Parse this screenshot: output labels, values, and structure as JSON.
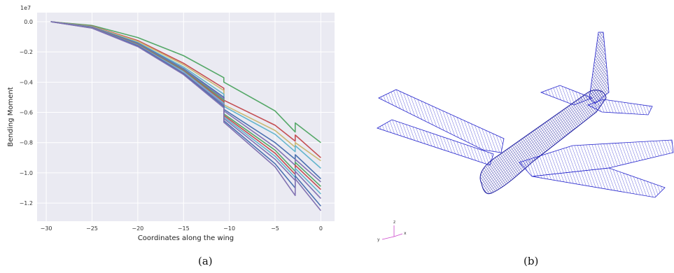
{
  "chart_data": {
    "type": "line",
    "title": "",
    "xlabel": "Coordinates along the wing",
    "ylabel": "Bending Moment",
    "scale_label": "1e7",
    "xlim": [
      -31,
      1.5
    ],
    "ylim": [
      -1.32,
      0.06
    ],
    "xticks": [
      -30,
      -25,
      -20,
      -15,
      -10,
      -5,
      0
    ],
    "yticks": [
      0.0,
      -0.2,
      -0.4,
      -0.6,
      -0.8,
      -1.0,
      -1.2
    ],
    "xtick_labels": [
      "−30",
      "−25",
      "−20",
      "−15",
      "−10",
      "−5",
      "0"
    ],
    "ytick_labels": [
      "0.0",
      "−0.2",
      "−0.4",
      "−0.6",
      "−0.8",
      "−1.0",
      "−1.2"
    ],
    "grid": true,
    "background": "#eaeaf2",
    "x": [
      -29.5,
      -25,
      -20,
      -15,
      -10.6,
      -10.6,
      -5,
      -2.8,
      -2.8,
      0
    ],
    "series": [
      {
        "color": "#55a868",
        "values": [
          0,
          -0.025,
          -0.105,
          -0.225,
          -0.37,
          -0.4,
          -0.59,
          -0.73,
          -0.67,
          -0.8
        ]
      },
      {
        "color": "#c44e52",
        "values": [
          0,
          -0.03,
          -0.125,
          -0.275,
          -0.44,
          -0.52,
          -0.685,
          -0.79,
          -0.75,
          -0.9
        ]
      },
      {
        "color": "#ccb974",
        "values": [
          0,
          -0.032,
          -0.13,
          -0.285,
          -0.455,
          -0.55,
          -0.72,
          -0.83,
          -0.8,
          -0.92
        ]
      },
      {
        "color": "#64b5cd",
        "values": [
          0,
          -0.034,
          -0.138,
          -0.3,
          -0.48,
          -0.56,
          -0.745,
          -0.86,
          -0.82,
          -0.97
        ]
      },
      {
        "color": "#4c72b0",
        "values": [
          0,
          -0.036,
          -0.142,
          -0.31,
          -0.5,
          -0.58,
          -0.8,
          -0.91,
          -0.88,
          -1.04
        ]
      },
      {
        "color": "#8172b2",
        "values": [
          0,
          -0.037,
          -0.146,
          -0.315,
          -0.51,
          -0.59,
          -0.83,
          -0.95,
          -0.91,
          -1.06
        ]
      },
      {
        "color": "#55a868",
        "values": [
          0,
          -0.038,
          -0.15,
          -0.32,
          -0.52,
          -0.61,
          -0.85,
          -0.99,
          -0.93,
          -1.09
        ]
      },
      {
        "color": "#c44e52",
        "values": [
          0,
          -0.039,
          -0.152,
          -0.325,
          -0.53,
          -0.62,
          -0.87,
          -1.01,
          -0.95,
          -1.11
        ]
      },
      {
        "color": "#64b5cd",
        "values": [
          0,
          -0.04,
          -0.155,
          -0.33,
          -0.54,
          -0.63,
          -0.89,
          -1.03,
          -0.97,
          -1.14
        ]
      },
      {
        "color": "#8172b2",
        "values": [
          0,
          -0.041,
          -0.158,
          -0.34,
          -0.55,
          -0.64,
          -0.91,
          -1.05,
          -0.99,
          -1.17
        ]
      },
      {
        "color": "#4c72b0",
        "values": [
          0,
          -0.042,
          -0.16,
          -0.345,
          -0.56,
          -0.655,
          -0.94,
          -1.1,
          -1.02,
          -1.22
        ]
      },
      {
        "color": "#8172b2",
        "values": [
          0,
          -0.043,
          -0.165,
          -0.35,
          -0.57,
          -0.665,
          -0.96,
          -1.15,
          -1.04,
          -1.25
        ]
      }
    ]
  },
  "figure": {
    "caption_a": "(a)",
    "caption_b": "(b)",
    "triad": {
      "z": "z",
      "x": "x",
      "y": "y"
    },
    "mesh_color": "#2222cc"
  }
}
